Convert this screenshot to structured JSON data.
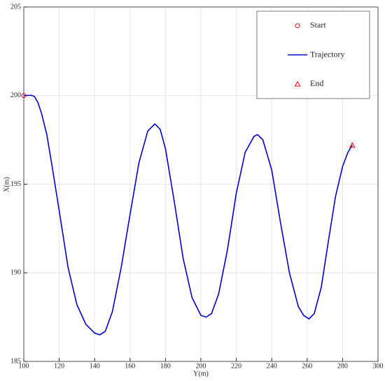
{
  "chart_data": {
    "type": "line",
    "xlabel": "Y(m)",
    "ylabel": "X(m)",
    "xlim": [
      100,
      300
    ],
    "xticks": [
      100,
      120,
      140,
      160,
      180,
      200,
      220,
      240,
      260,
      280,
      300
    ],
    "ylim": [
      185,
      205
    ],
    "yticks": [
      185,
      190,
      195,
      200,
      205
    ],
    "grid": true,
    "legend": "northeast",
    "series": [
      {
        "name": "Start",
        "color": "#ff0000",
        "marker": "circle",
        "x": [
          100
        ],
        "values": [
          200
        ]
      },
      {
        "name": "Trajectory",
        "color": "#0000c8",
        "marker": "none",
        "x": [
          100,
          104,
          106,
          108,
          110,
          113,
          116,
          120,
          125,
          130,
          135,
          140,
          143,
          146,
          150,
          155,
          160,
          165,
          170,
          174,
          177,
          180,
          185,
          190,
          195,
          200,
          203,
          206,
          210,
          215,
          220,
          225,
          230,
          232,
          235,
          240,
          245,
          250,
          255,
          258,
          261,
          264,
          268,
          272,
          276,
          280,
          283,
          285.5
        ],
        "values": [
          200,
          200.02,
          199.95,
          199.6,
          199,
          197.8,
          196,
          193.5,
          190.3,
          188.2,
          187.1,
          186.6,
          186.5,
          186.7,
          187.8,
          190.3,
          193.3,
          196.2,
          198,
          198.4,
          198.1,
          197,
          194,
          190.8,
          188.6,
          187.6,
          187.5,
          187.7,
          188.8,
          191.3,
          194.5,
          196.8,
          197.7,
          197.8,
          197.5,
          195.8,
          192.8,
          190,
          188.1,
          187.6,
          187.4,
          187.7,
          189.2,
          191.8,
          194.3,
          196,
          196.8,
          197.2
        ]
      },
      {
        "name": "End",
        "color": "#ff0000",
        "marker": "triangle",
        "x": [
          285.5
        ],
        "values": [
          197.2
        ]
      }
    ]
  }
}
